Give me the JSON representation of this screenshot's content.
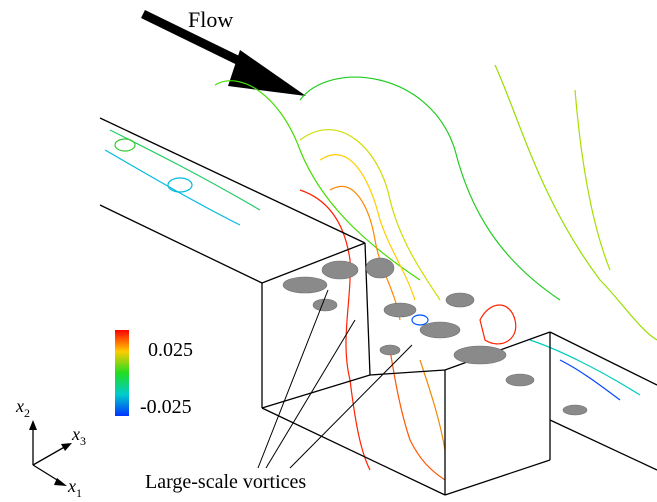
{
  "flow_label": "Flow",
  "colorbar": {
    "max_label": "0.025",
    "min_label": "-0.025"
  },
  "annotation": "Large-scale vortices",
  "axes": [
    {
      "var": "x",
      "sub": "2"
    },
    {
      "var": "x",
      "sub": "3"
    },
    {
      "var": "x",
      "sub": "1"
    }
  ]
}
